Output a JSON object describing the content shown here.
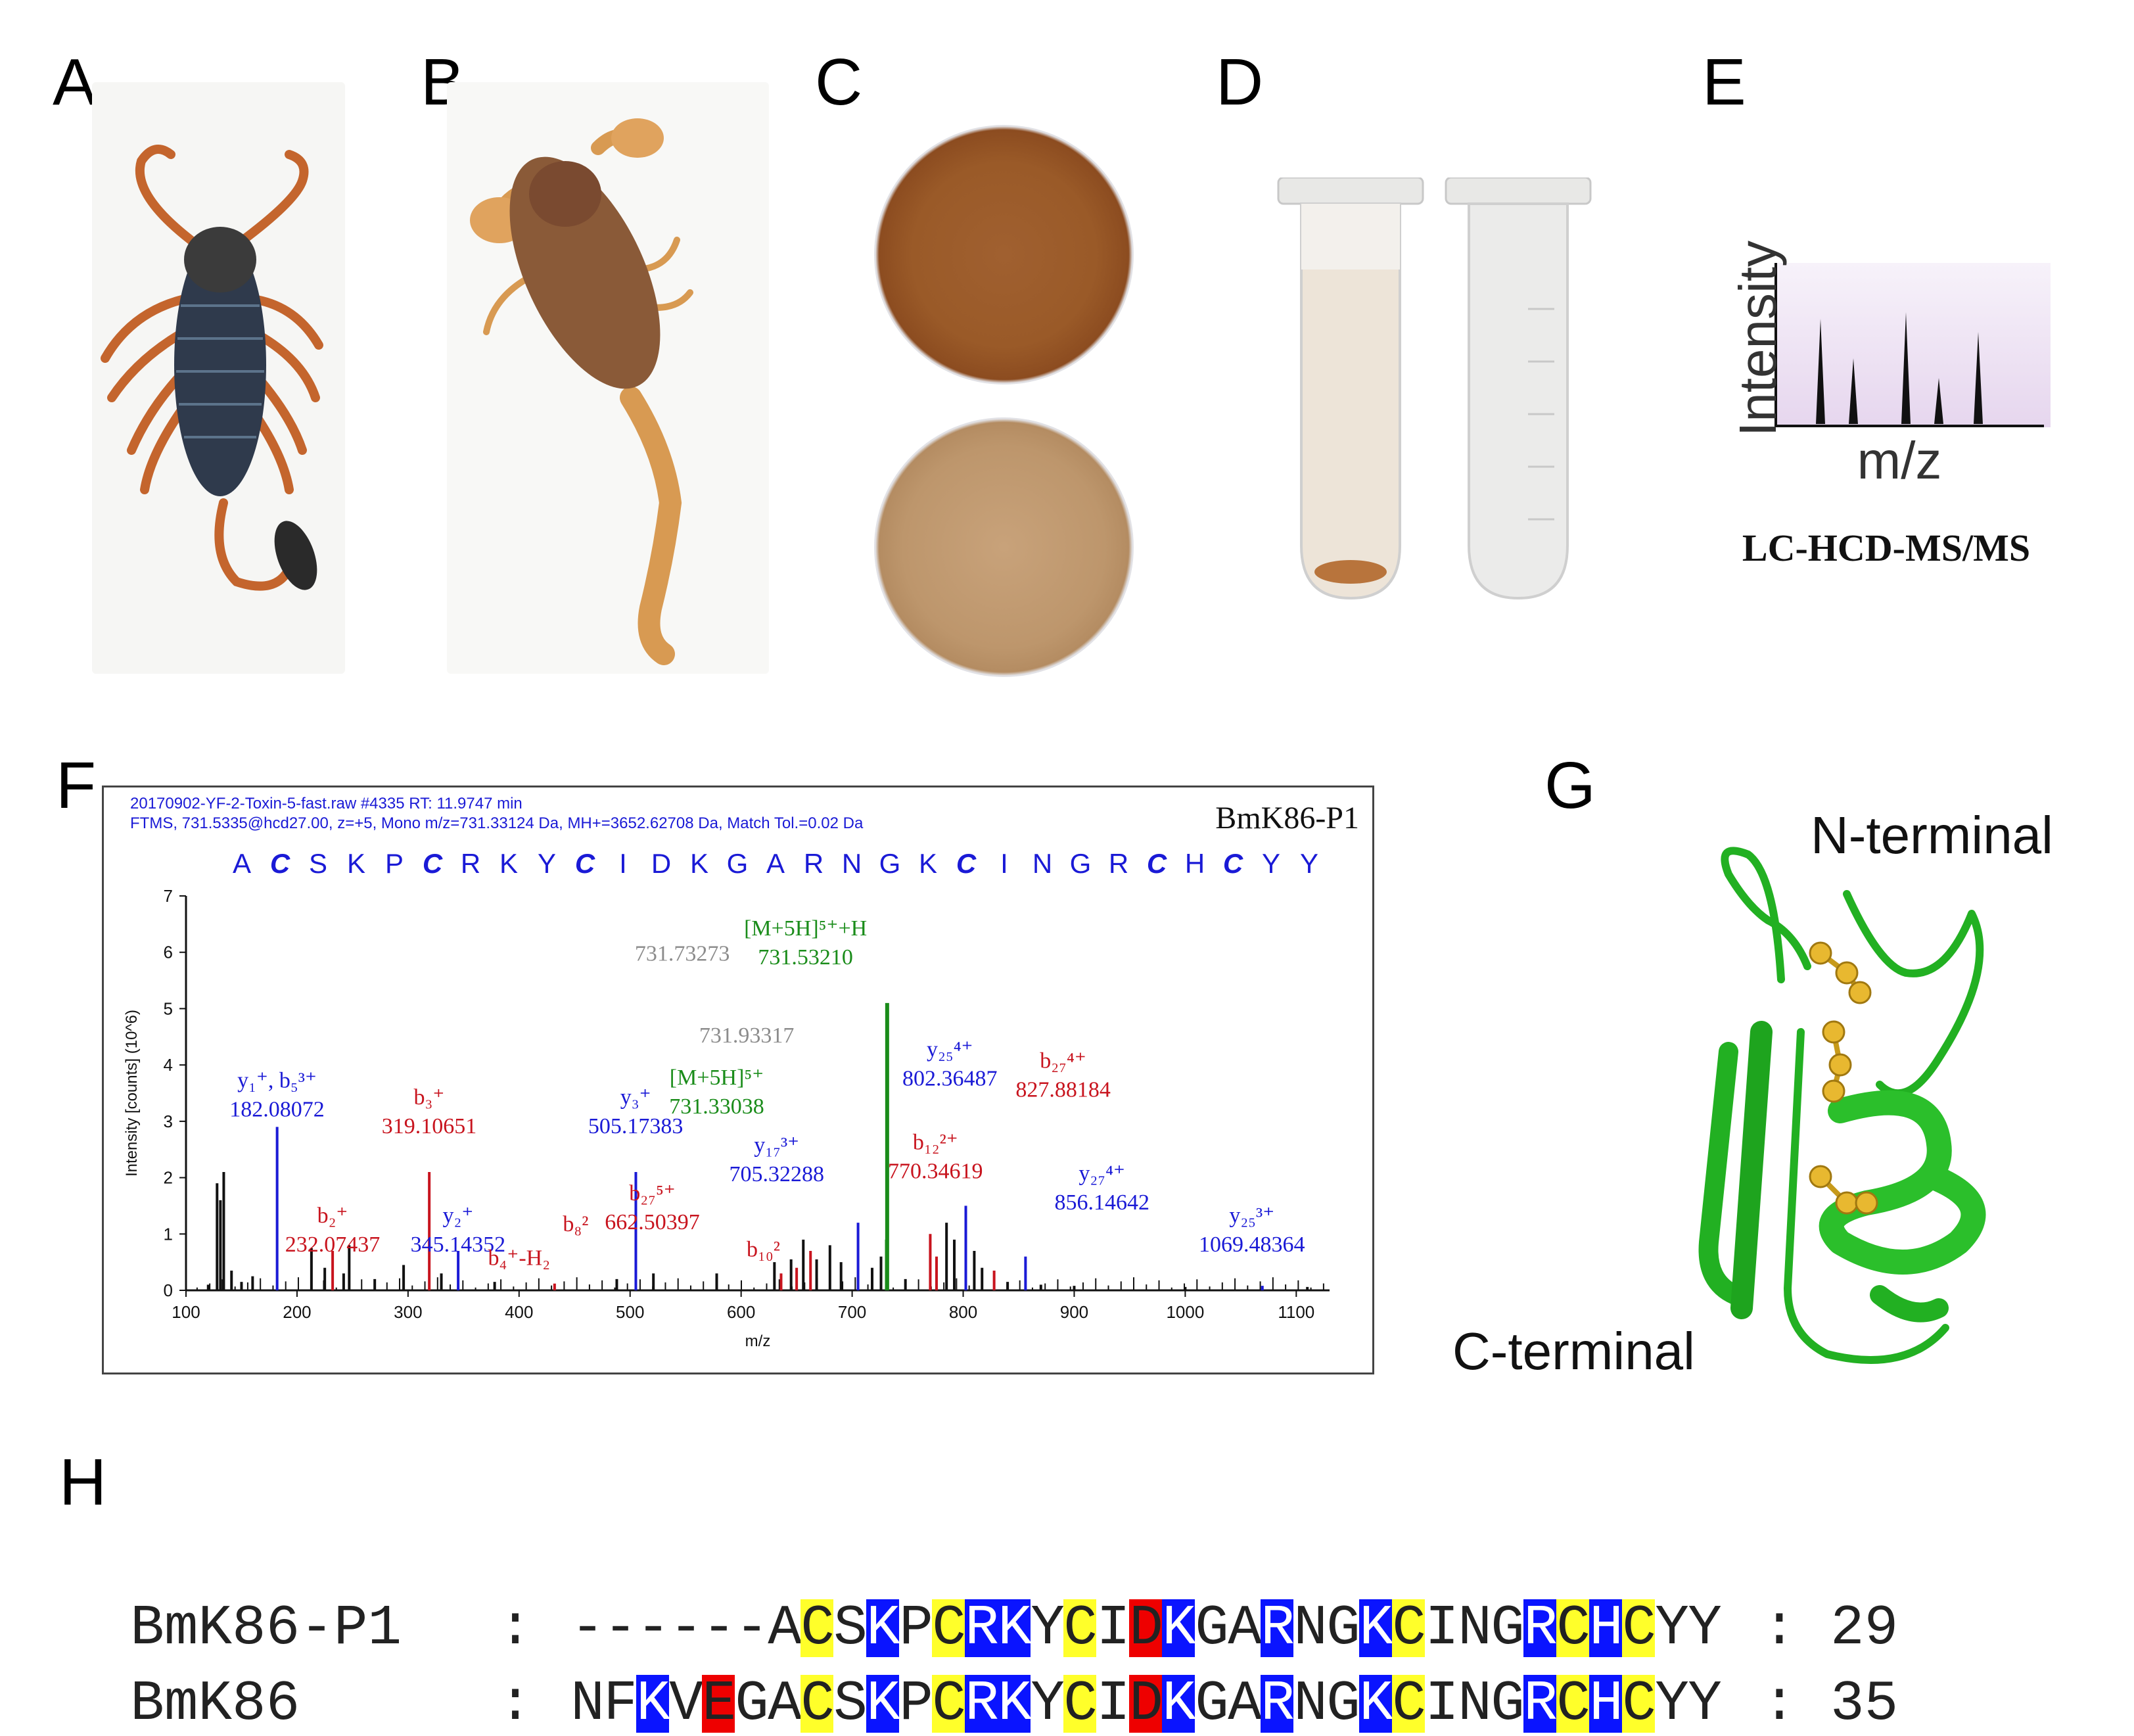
{
  "panels": {
    "A": "A",
    "B": "B",
    "C": "C",
    "D": "D",
    "E": "E",
    "F": "F",
    "G": "G",
    "H": "H"
  },
  "panel_e": {
    "ylabel": "Intensity",
    "xlabel": "m/z",
    "method": "LC-HCD-MS/MS",
    "peaks": [
      0.8,
      0.5,
      0.85,
      0.35,
      0.7
    ]
  },
  "panel_f": {
    "header_line1": "20170902-YF-2-Toxin-5-fast.raw  #4335  RT: 11.9747 min",
    "header_line2": "FTMS, 731.5335@hcd27.00, z=+5, Mono m/z=731.33124 Da, MH+=3652.62708 Da, Match Tol.=0.02 Da",
    "peptide_name": "BmK86-P1",
    "sequence": [
      "A",
      "C",
      "S",
      "K",
      "P",
      "C",
      "R",
      "K",
      "Y",
      "C",
      "I",
      "D",
      "K",
      "G",
      "A",
      "R",
      "N",
      "G",
      "K",
      "C",
      "I",
      "N",
      "G",
      "R",
      "C",
      "H",
      "C",
      "Y",
      "Y"
    ],
    "cys_indices": [
      1,
      5,
      9,
      19,
      24,
      26
    ]
  },
  "chart_data": {
    "type": "bar",
    "title": "BmK86-P1",
    "xlabel": "m/z",
    "ylabel": "Intensity [counts] (10^6)",
    "xlim": [
      100,
      1130
    ],
    "ylim": [
      0,
      7
    ],
    "xticks": [
      "100",
      "200",
      "300",
      "400",
      "500",
      "600",
      "700",
      "800",
      "900",
      "1000",
      "1100"
    ],
    "yticks": [
      "0",
      "1",
      "2",
      "3",
      "4",
      "5",
      "6",
      "7"
    ],
    "peaks": [
      {
        "x": 120,
        "y": 0.1,
        "c": "k"
      },
      {
        "x": 128,
        "y": 1.9,
        "c": "k"
      },
      {
        "x": 131,
        "y": 1.6,
        "c": "k"
      },
      {
        "x": 134,
        "y": 2.1,
        "c": "k"
      },
      {
        "x": 141,
        "y": 0.35,
        "c": "k"
      },
      {
        "x": 150,
        "y": 0.15,
        "c": "k"
      },
      {
        "x": 160,
        "y": 0.25,
        "c": "k"
      },
      {
        "x": 182.08,
        "y": 2.9,
        "c": "b"
      },
      {
        "x": 213,
        "y": 0.75,
        "c": "k"
      },
      {
        "x": 225,
        "y": 0.4,
        "c": "k"
      },
      {
        "x": 232.07,
        "y": 0.7,
        "c": "r"
      },
      {
        "x": 242,
        "y": 0.3,
        "c": "k"
      },
      {
        "x": 247,
        "y": 0.8,
        "c": "k"
      },
      {
        "x": 270,
        "y": 0.2,
        "c": "k"
      },
      {
        "x": 296,
        "y": 0.45,
        "c": "k"
      },
      {
        "x": 319.11,
        "y": 2.1,
        "c": "r"
      },
      {
        "x": 330,
        "y": 0.3,
        "c": "k"
      },
      {
        "x": 345.14,
        "y": 0.7,
        "c": "b"
      },
      {
        "x": 378,
        "y": 0.15,
        "c": "k"
      },
      {
        "x": 432,
        "y": 0.12,
        "c": "r"
      },
      {
        "x": 488,
        "y": 0.2,
        "c": "k"
      },
      {
        "x": 505.17,
        "y": 2.1,
        "c": "b"
      },
      {
        "x": 521,
        "y": 0.3,
        "c": "k"
      },
      {
        "x": 578,
        "y": 0.3,
        "c": "k"
      },
      {
        "x": 630,
        "y": 0.5,
        "c": "k"
      },
      {
        "x": 636,
        "y": 0.3,
        "c": "r"
      },
      {
        "x": 645,
        "y": 0.55,
        "c": "k"
      },
      {
        "x": 650,
        "y": 0.4,
        "c": "r"
      },
      {
        "x": 656,
        "y": 0.9,
        "c": "k"
      },
      {
        "x": 662.5,
        "y": 0.7,
        "c": "r"
      },
      {
        "x": 668,
        "y": 0.55,
        "c": "k"
      },
      {
        "x": 680,
        "y": 0.8,
        "c": "k"
      },
      {
        "x": 690,
        "y": 0.5,
        "c": "k"
      },
      {
        "x": 705.32,
        "y": 1.2,
        "c": "b"
      },
      {
        "x": 718,
        "y": 0.4,
        "c": "k"
      },
      {
        "x": 726,
        "y": 0.6,
        "c": "k"
      },
      {
        "x": 731.53,
        "y": 5.1,
        "c": "g"
      },
      {
        "x": 731.33,
        "y": 0.9,
        "c": "g"
      },
      {
        "x": 748,
        "y": 0.2,
        "c": "k"
      },
      {
        "x": 770.35,
        "y": 1.0,
        "c": "r"
      },
      {
        "x": 776,
        "y": 0.6,
        "c": "r"
      },
      {
        "x": 785,
        "y": 1.2,
        "c": "k"
      },
      {
        "x": 792,
        "y": 0.9,
        "c": "k"
      },
      {
        "x": 802.36,
        "y": 1.5,
        "c": "b"
      },
      {
        "x": 810,
        "y": 0.7,
        "c": "k"
      },
      {
        "x": 817,
        "y": 0.4,
        "c": "k"
      },
      {
        "x": 827.88,
        "y": 0.35,
        "c": "r"
      },
      {
        "x": 840,
        "y": 0.15,
        "c": "k"
      },
      {
        "x": 856.15,
        "y": 0.6,
        "c": "b"
      },
      {
        "x": 870,
        "y": 0.1,
        "c": "k"
      },
      {
        "x": 900,
        "y": 0.08,
        "c": "k"
      },
      {
        "x": 1000,
        "y": 0.06,
        "c": "k"
      },
      {
        "x": 1069.48,
        "y": 0.08,
        "c": "b"
      },
      {
        "x": 1110,
        "y": 0.06,
        "c": "k"
      }
    ],
    "annotations": [
      {
        "lines": [
          "y₁⁺, b₅³⁺",
          "182.08072"
        ],
        "color": "#1a1ad6",
        "x": 182,
        "y": 3.6
      },
      {
        "lines": [
          "b₂⁺",
          "232.07437"
        ],
        "color": "#c8141e",
        "x": 232,
        "y": 1.2
      },
      {
        "lines": [
          "b₃⁺",
          "319.10651"
        ],
        "color": "#c8141e",
        "x": 319,
        "y": 3.3
      },
      {
        "lines": [
          "y₂⁺",
          "345.14352"
        ],
        "color": "#1a1ad6",
        "x": 345,
        "y": 1.2
      },
      {
        "lines": [
          "b₄⁺-H₂"
        ],
        "color": "#c8141e",
        "x": 400,
        "y": 0.45
      },
      {
        "lines": [
          "b₈²"
        ],
        "color": "#c8141e",
        "x": 451,
        "y": 1.05
      },
      {
        "lines": [
          "y₃⁺",
          "505.17383"
        ],
        "color": "#1a1ad6",
        "x": 505,
        "y": 3.3
      },
      {
        "lines": [
          "b₂₇⁵⁺",
          "662.50397"
        ],
        "color": "#c8141e",
        "x": 520,
        "y": 1.6
      },
      {
        "lines": [
          "b₁₀²"
        ],
        "color": "#c8141e",
        "x": 620,
        "y": 0.6
      },
      {
        "lines": [
          "731.73273"
        ],
        "color": "#8c8c8c",
        "x": 547,
        "y": 5.85
      },
      {
        "lines": [
          "731.93317"
        ],
        "color": "#8c8c8c",
        "x": 605,
        "y": 4.4
      },
      {
        "lines": [
          "[M+5H]⁵⁺",
          "731.33038"
        ],
        "color": "#1a8c1a",
        "x": 578,
        "y": 3.65
      },
      {
        "lines": [
          "[M+5H]⁵⁺+H",
          "731.53210"
        ],
        "color": "#1a8c1a",
        "x": 658,
        "y": 6.3
      },
      {
        "lines": [
          "y₁₇³⁺",
          "705.32288"
        ],
        "color": "#1a1ad6",
        "x": 632,
        "y": 2.45
      },
      {
        "lines": [
          "y₂₅⁴⁺",
          "802.36487"
        ],
        "color": "#1a1ad6",
        "x": 788,
        "y": 4.15
      },
      {
        "lines": [
          "b₁₂²⁺",
          "770.34619"
        ],
        "color": "#c8141e",
        "x": 775,
        "y": 2.5
      },
      {
        "lines": [
          "b₂₇⁴⁺",
          "827.88184"
        ],
        "color": "#c8141e",
        "x": 890,
        "y": 3.95
      },
      {
        "lines": [
          "y₂₇⁴⁺",
          "856.14642"
        ],
        "color": "#1a1ad6",
        "x": 925,
        "y": 1.95
      },
      {
        "lines": [
          "y₂₅³⁺",
          "1069.48364"
        ],
        "color": "#1a1ad6",
        "x": 1060,
        "y": 1.2
      }
    ]
  },
  "panel_g": {
    "n_label": "N-terminal",
    "c_label": "C-terminal"
  },
  "panel_h": {
    "rows": [
      {
        "name": "BmK86-P1",
        "sep": ":",
        "seq": "------ACSKPCRKYCIDKGARNGKCINGRCHCYY",
        "count": "29"
      },
      {
        "name": "BmK86",
        "sep": ":",
        "seq": "NFKVEGACSKPCRKYCIDKGARNGKCINGRCHCYY",
        "count": "35"
      }
    ],
    "yellow_cols": [
      7,
      11,
      15,
      25,
      30,
      32
    ],
    "blue_cols_both": [
      9,
      12,
      13,
      18,
      21,
      24,
      29,
      31
    ],
    "red_cols_both": [
      17
    ],
    "blue_cols_row2": [
      2
    ],
    "red_cols_row2": [
      4
    ]
  }
}
